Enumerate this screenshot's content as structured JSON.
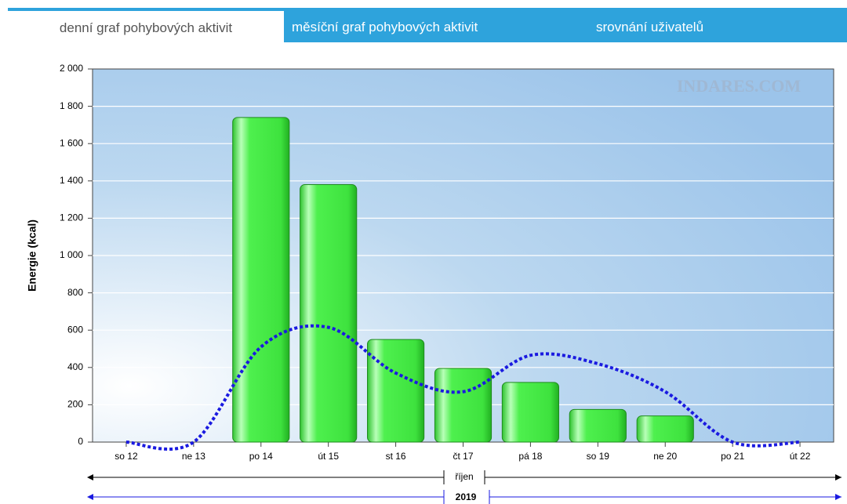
{
  "tabs": [
    "denní graf pohybových aktivit",
    "měsíční graf pohybových aktivit",
    "srovnání uživatelů"
  ],
  "chart_data": {
    "type": "bar",
    "watermark": "INDARES.COM",
    "y_label": "Energie (kcal)",
    "categories": [
      "so 12",
      "ne 13",
      "po 14",
      "út 15",
      "st 16",
      "čt 17",
      "pá 18",
      "so 19",
      "ne 20",
      "po 21",
      "út 22"
    ],
    "series": [
      {
        "type": "bar",
        "color": "#3de63d",
        "values": [
          0,
          0,
          1740,
          1380,
          550,
          395,
          320,
          175,
          140,
          0,
          0
        ]
      },
      {
        "type": "line",
        "color": "#1a1ae0",
        "values": [
          0,
          0,
          510,
          615,
          370,
          270,
          465,
          420,
          270,
          0,
          0
        ]
      }
    ],
    "ylim": [
      0,
      2000
    ],
    "yticks": [
      0,
      200,
      400,
      600,
      800,
      {
        "value": 1000,
        "label": "1 000"
      },
      {
        "value": 1200,
        "label": "1 200"
      },
      {
        "value": 1400,
        "label": "1 400"
      },
      {
        "value": 1600,
        "label": "1 600"
      },
      {
        "value": 1800,
        "label": "1 800"
      },
      {
        "value": 2000,
        "label": "2 000"
      }
    ],
    "grid": true,
    "period_labels": [
      "říjen",
      "2019"
    ]
  }
}
